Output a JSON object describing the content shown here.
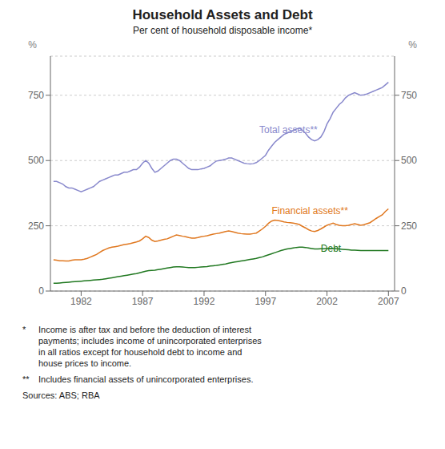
{
  "chart_data": {
    "type": "line",
    "title": "Household Assets and Debt",
    "subtitle": "Per cent of household disposable income*",
    "ylabel": "%",
    "y2label": "%",
    "x": [
      1979.75,
      1980.0,
      1980.25,
      1980.5,
      1980.75,
      1981.0,
      1981.25,
      1981.5,
      1981.75,
      1982.0,
      1982.25,
      1982.5,
      1982.75,
      1983.0,
      1983.25,
      1983.5,
      1983.75,
      1984.0,
      1984.25,
      1984.5,
      1984.75,
      1985.0,
      1985.25,
      1985.5,
      1985.75,
      1986.0,
      1986.25,
      1986.5,
      1986.75,
      1987.0,
      1987.25,
      1987.5,
      1987.75,
      1988.0,
      1988.25,
      1988.5,
      1988.75,
      1989.0,
      1989.25,
      1989.5,
      1989.75,
      1990.0,
      1990.25,
      1990.5,
      1990.75,
      1991.0,
      1991.25,
      1991.5,
      1991.75,
      1992.0,
      1992.25,
      1992.5,
      1992.75,
      1993.0,
      1993.25,
      1993.5,
      1993.75,
      1994.0,
      1994.25,
      1994.5,
      1994.75,
      1995.0,
      1995.25,
      1995.5,
      1995.75,
      1996.0,
      1996.25,
      1996.5,
      1996.75,
      1997.0,
      1997.25,
      1997.5,
      1997.75,
      1998.0,
      1998.25,
      1998.5,
      1998.75,
      1999.0,
      1999.25,
      1999.5,
      1999.75,
      2000.0,
      2000.25,
      2000.5,
      2000.75,
      2001.0,
      2001.25,
      2001.5,
      2001.75,
      2002.0,
      2002.25,
      2002.5,
      2002.75,
      2003.0,
      2003.25,
      2003.5,
      2003.75,
      2004.0,
      2004.25,
      2004.5,
      2004.75,
      2005.0,
      2005.25,
      2005.5,
      2005.75,
      2006.0,
      2006.25,
      2006.5,
      2006.75,
      2007.0
    ],
    "series": [
      {
        "name": "Total assets**",
        "color": "#8888cc",
        "values": [
          420,
          420,
          415,
          410,
          400,
          395,
          395,
          390,
          385,
          380,
          385,
          390,
          395,
          400,
          410,
          420,
          425,
          430,
          435,
          440,
          445,
          445,
          450,
          455,
          455,
          460,
          465,
          465,
          475,
          490,
          500,
          490,
          470,
          455,
          460,
          470,
          480,
          490,
          500,
          505,
          505,
          500,
          490,
          480,
          470,
          465,
          465,
          465,
          468,
          470,
          475,
          480,
          490,
          498,
          500,
          502,
          505,
          510,
          510,
          505,
          500,
          495,
          490,
          488,
          487,
          488,
          492,
          500,
          510,
          520,
          540,
          555,
          570,
          580,
          590,
          600,
          605,
          610,
          615,
          620,
          625,
          615,
          605,
          590,
          580,
          575,
          580,
          590,
          610,
          640,
          660,
          685,
          700,
          715,
          725,
          740,
          750,
          755,
          760,
          755,
          750,
          752,
          755,
          760,
          765,
          770,
          775,
          780,
          790,
          800
        ]
      },
      {
        "name": "Financial assets**",
        "color": "#e07820",
        "values": [
          120,
          118,
          116,
          116,
          115,
          115,
          118,
          120,
          120,
          120,
          122,
          125,
          130,
          135,
          140,
          148,
          155,
          160,
          165,
          168,
          170,
          172,
          175,
          178,
          180,
          182,
          185,
          188,
          192,
          200,
          210,
          205,
          195,
          190,
          192,
          195,
          198,
          200,
          205,
          210,
          215,
          213,
          210,
          208,
          205,
          203,
          203,
          205,
          208,
          210,
          212,
          215,
          218,
          220,
          222,
          225,
          228,
          230,
          228,
          225,
          222,
          220,
          219,
          218,
          218,
          220,
          222,
          230,
          238,
          248,
          260,
          268,
          272,
          270,
          268,
          265,
          263,
          262,
          260,
          258,
          255,
          248,
          242,
          235,
          230,
          228,
          232,
          238,
          245,
          252,
          256,
          260,
          255,
          252,
          250,
          250,
          252,
          255,
          258,
          255,
          252,
          254,
          258,
          262,
          270,
          278,
          285,
          292,
          305,
          315
        ]
      },
      {
        "name": "Debt",
        "color": "#207820",
        "values": [
          30,
          30,
          31,
          32,
          33,
          34,
          35,
          36,
          37,
          38,
          39,
          40,
          41,
          42,
          43,
          44,
          45,
          47,
          49,
          51,
          53,
          55,
          57,
          59,
          61,
          63,
          65,
          67,
          70,
          73,
          76,
          78,
          79,
          80,
          82,
          84,
          86,
          88,
          90,
          92,
          93,
          93,
          92,
          91,
          90,
          90,
          90,
          91,
          92,
          93,
          94,
          96,
          97,
          98,
          100,
          102,
          104,
          107,
          109,
          111,
          113,
          115,
          117,
          119,
          121,
          123,
          125,
          128,
          131,
          135,
          139,
          143,
          147,
          151,
          155,
          158,
          161,
          163,
          165,
          167,
          168,
          168,
          167,
          165,
          163,
          161,
          161,
          162,
          162,
          163,
          163,
          163,
          162,
          161,
          160,
          159,
          158,
          157,
          157,
          156,
          155,
          155,
          155,
          155,
          155,
          155,
          155,
          155,
          155,
          155
        ]
      }
    ],
    "xlim": [
      1979.5,
      2007.5
    ],
    "xticks": [
      1982,
      1987,
      1992,
      1997,
      2002,
      2007
    ],
    "ylim": [
      0,
      900
    ],
    "yticks": [
      0,
      250,
      500,
      750
    ],
    "y2lim": [
      0,
      900
    ],
    "y2ticks": [
      0,
      250,
      500,
      750
    ],
    "grid": true,
    "annotations": [
      {
        "text": "Total assets**",
        "x": 1996.5,
        "y": 618,
        "color": "#8888cc"
      },
      {
        "text": "Financial assets**",
        "x": 1997.5,
        "y": 308,
        "color": "#e07820"
      },
      {
        "text": "Debt",
        "x": 2001.5,
        "y": 163,
        "color": "#207820"
      }
    ],
    "footnotes": [
      {
        "mark": "*",
        "text": "Income is after tax and before the deduction of interest\npayments; includes income of unincorporated enterprises\nin all ratios except for household debt to income and\nhouse prices to income."
      },
      {
        "mark": "**",
        "text": "Includes financial assets of unincorporated enterprises."
      }
    ],
    "source": "Sources: ABS; RBA"
  }
}
